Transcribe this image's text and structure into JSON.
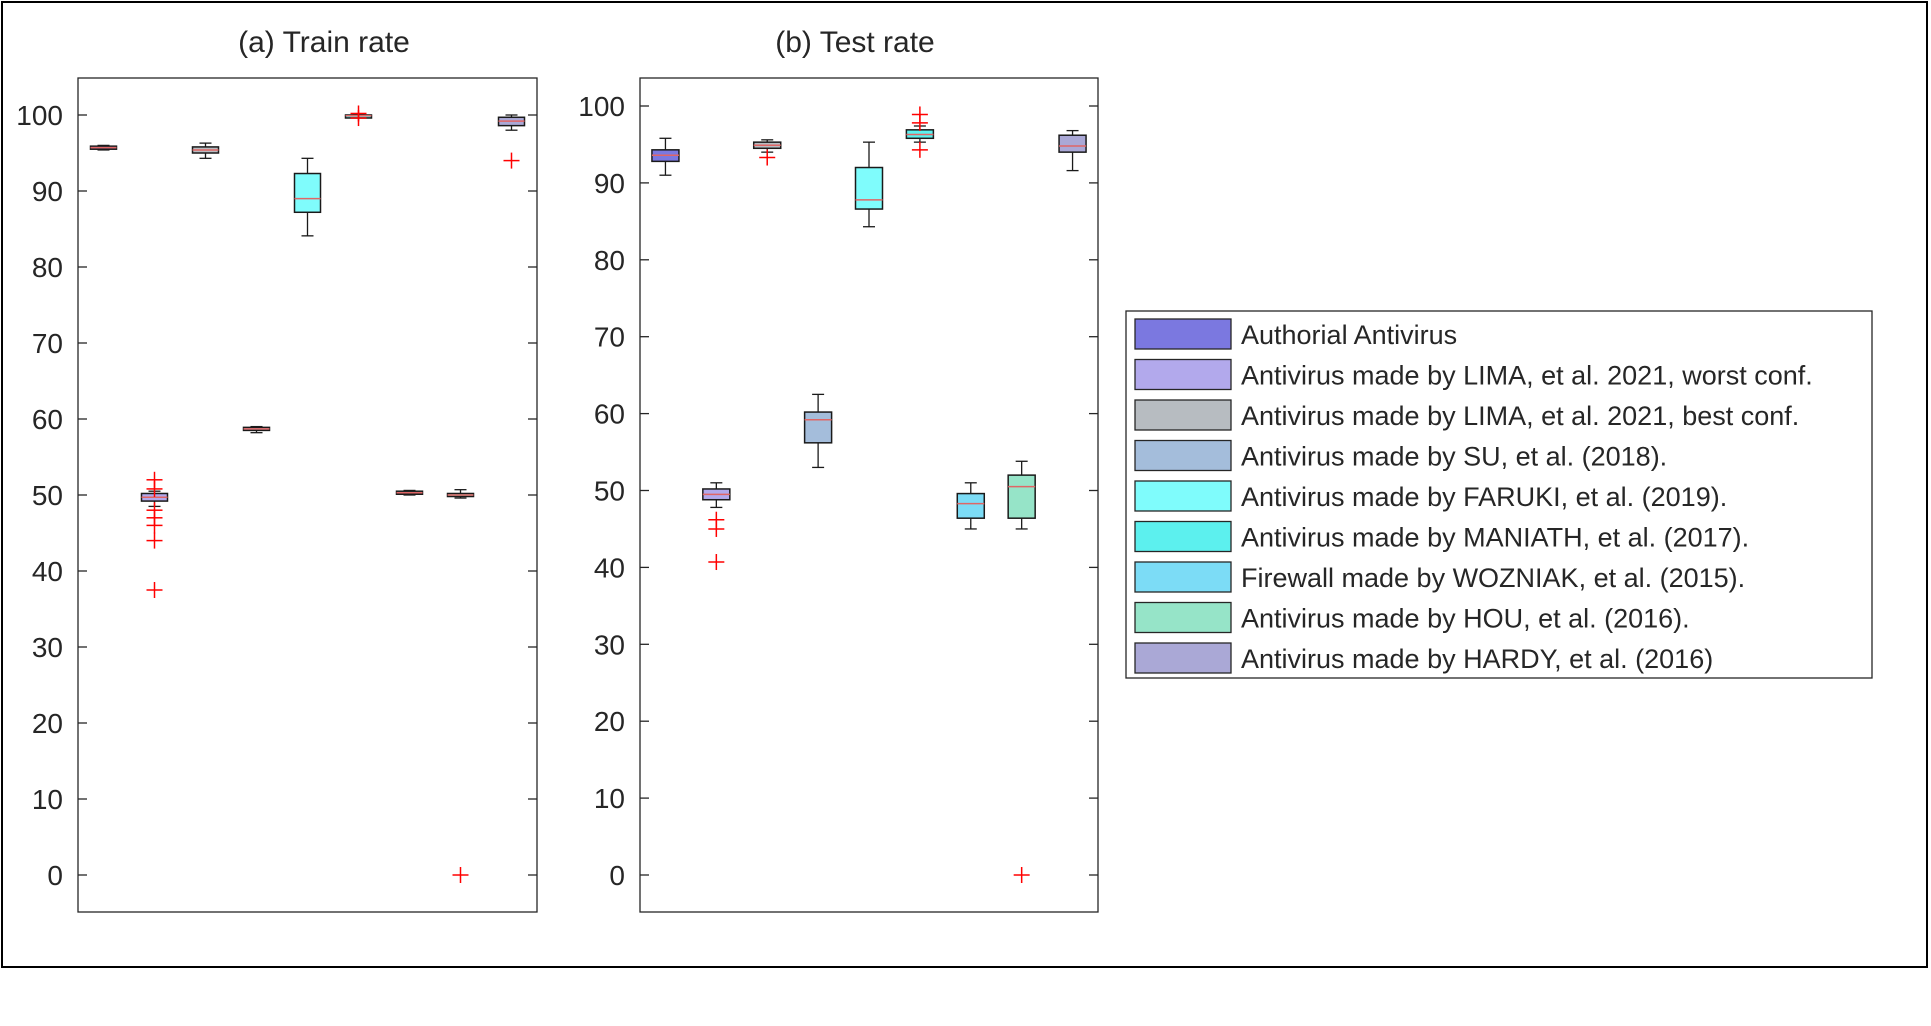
{
  "legend": [
    {
      "label": "Authorial Antivirus",
      "color": "#7b78e0"
    },
    {
      "label": "Antivirus made by LIMA, et al. 2021, worst conf.",
      "color": "#b2a9ec"
    },
    {
      "label": "Antivirus made by LIMA, et al. 2021, best conf.",
      "color": "#b7bcc1"
    },
    {
      "label": "Antivirus made by SU, et al. (2018).",
      "color": "#a4bddb"
    },
    {
      "label": "Antivirus made by FARUKI, et al. (2019).",
      "color": "#7ffcfc"
    },
    {
      "label": "Antivirus made by MANIATH, et al. (2017).",
      "color": "#5cf0ee"
    },
    {
      "label": "Firewall made by WOZNIAK, et al. (2015).",
      "color": "#7cdcf6"
    },
    {
      "label": "Antivirus made by HOU, et al. (2016).",
      "color": "#96e4c8"
    },
    {
      "label": "Antivirus made by HARDY, et al. (2016)",
      "color": "#aaa8d6"
    }
  ],
  "colors": {
    "outlier": "#ff0000",
    "median": "#e06666",
    "box_edge": "#1a1a1a",
    "axis": "#262626"
  },
  "chart_data": [
    {
      "type": "box",
      "title": "(a) Train rate",
      "ylim": [
        -5,
        105
      ],
      "yticks": [
        0,
        10,
        20,
        30,
        40,
        50,
        60,
        70,
        80,
        90,
        100
      ],
      "grid": false,
      "series": [
        {
          "group": "Authorial Antivirus",
          "q1": 95.5,
          "median": 95.7,
          "q3": 95.9,
          "whisker_low": 95.4,
          "whisker_high": 96.0,
          "outliers": []
        },
        {
          "group": "Antivirus made by LIMA, et al. 2021, worst conf.",
          "q1": 49.2,
          "median": 49.7,
          "q3": 50.2,
          "whisker_low": 48.5,
          "whisker_high": 50.5,
          "outliers": [
            52,
            50.8,
            48,
            47,
            46,
            44,
            37.5
          ]
        },
        {
          "group": "Antivirus made by LIMA, et al. 2021, best conf.",
          "q1": 95.0,
          "median": 95.4,
          "q3": 95.8,
          "whisker_low": 94.3,
          "whisker_high": 96.3,
          "outliers": []
        },
        {
          "group": "Antivirus made by SU, et al. (2018).",
          "q1": 58.5,
          "median": 58.7,
          "q3": 58.9,
          "whisker_low": 58.2,
          "whisker_high": 59.0,
          "outliers": []
        },
        {
          "group": "Antivirus made by FARUKI, et al. (2019).",
          "q1": 87.2,
          "median": 89.0,
          "q3": 92.3,
          "whisker_low": 84.1,
          "whisker_high": 94.3,
          "outliers": []
        },
        {
          "group": "Antivirus made by MANIATH, et al. (2017).",
          "q1": 99.8,
          "median": 99.9,
          "q3": 100.0,
          "whisker_low": 99.7,
          "whisker_high": 100.0,
          "outliers": [
            99.6,
            100.2
          ]
        },
        {
          "group": "Firewall made by WOZNIAK, et al. (2015).",
          "q1": 50.1,
          "median": 50.3,
          "q3": 50.5,
          "whisker_low": 50.0,
          "whisker_high": 50.6,
          "outliers": []
        },
        {
          "group": "Antivirus made by HOU, et al. (2016).",
          "q1": 49.8,
          "median": 50.0,
          "q3": 50.2,
          "whisker_low": 49.6,
          "whisker_high": 50.7,
          "outliers": [
            0
          ]
        },
        {
          "group": "Antivirus made by HARDY, et al. (2016)",
          "q1": 98.6,
          "median": 99.2,
          "q3": 99.7,
          "whisker_low": 98.0,
          "whisker_high": 100.0,
          "outliers": [
            94
          ]
        }
      ]
    },
    {
      "type": "box",
      "title": "(b) Test rate",
      "ylim": [
        -5,
        104
      ],
      "yticks": [
        0,
        10,
        20,
        30,
        40,
        50,
        60,
        70,
        80,
        90,
        100
      ],
      "grid": false,
      "series": [
        {
          "group": "Authorial Antivirus",
          "q1": 92.8,
          "median": 93.6,
          "q3": 94.3,
          "whisker_low": 91.0,
          "whisker_high": 95.8,
          "outliers": []
        },
        {
          "group": "Antivirus made by LIMA, et al. 2021, worst conf.",
          "q1": 48.8,
          "median": 49.5,
          "q3": 50.2,
          "whisker_low": 47.8,
          "whisker_high": 51.0,
          "outliers": [
            46.2,
            45.0,
            40.7
          ]
        },
        {
          "group": "Antivirus made by LIMA, et al. 2021, best conf.",
          "q1": 94.5,
          "median": 94.9,
          "q3": 95.3,
          "whisker_low": 94.0,
          "whisker_high": 95.6,
          "outliers": [
            93.3
          ]
        },
        {
          "group": "Antivirus made by SU, et al. (2018).",
          "q1": 56.2,
          "median": 59.2,
          "q3": 60.2,
          "whisker_low": 53.0,
          "whisker_high": 62.5,
          "outliers": []
        },
        {
          "group": "Antivirus made by FARUKI, et al. (2019).",
          "q1": 86.6,
          "median": 87.8,
          "q3": 92.0,
          "whisker_low": 84.3,
          "whisker_high": 95.3,
          "outliers": []
        },
        {
          "group": "Antivirus made by MANIATH, et al. (2017).",
          "q1": 95.8,
          "median": 96.3,
          "q3": 96.9,
          "whisker_low": 95.3,
          "whisker_high": 97.4,
          "outliers": [
            98.9,
            97.8,
            94.3
          ]
        },
        {
          "group": "Firewall made by WOZNIAK, et al. (2015).",
          "q1": 46.4,
          "median": 48.3,
          "q3": 49.6,
          "whisker_low": 45.0,
          "whisker_high": 51.0,
          "outliers": []
        },
        {
          "group": "Antivirus made by HOU, et al. (2016).",
          "q1": 46.4,
          "median": 50.5,
          "q3": 52.0,
          "whisker_low": 45.0,
          "whisker_high": 53.8,
          "outliers": [
            0
          ]
        },
        {
          "group": "Antivirus made by HARDY, et al. (2016)",
          "q1": 94.0,
          "median": 94.8,
          "q3": 96.2,
          "whisker_low": 91.6,
          "whisker_high": 96.8,
          "outliers": []
        }
      ]
    }
  ]
}
